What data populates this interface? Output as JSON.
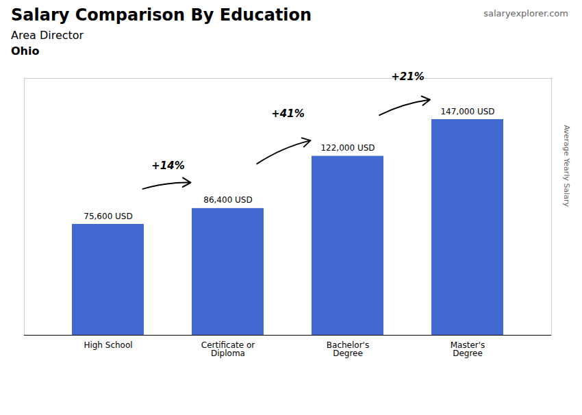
{
  "chart_data": {
    "type": "bar",
    "title": "Salary Comparison By Education",
    "subtitle": "Area Director",
    "ylabel": "Average Yearly Salary",
    "categories": [
      "High School",
      "Certificate or\nDiploma",
      "Bachelor's\nDegree",
      "Master's\nDegree"
    ],
    "values": [
      75600,
      86400,
      122000,
      147000
    ],
    "value_labels": [
      "75,600 USD",
      "86,400 USD",
      "122,000 USD",
      "147,000 USD"
    ],
    "data_labels": true,
    "ylim": [
      0,
      175000
    ],
    "tick_labels": "x",
    "annotations": [
      {
        "text": "Ohio"
      },
      {
        "text": "salaryexplorer.com"
      },
      {
        "text": "+14%",
        "from": "High School",
        "to": "Certificate or\nDiploma"
      },
      {
        "text": "+41%",
        "from": "Certificate or\nDiploma",
        "to": "Bachelor's\nDegree"
      },
      {
        "text": "+21%",
        "from": "Bachelor's\nDegree",
        "to": "Master's\nDegree"
      }
    ]
  }
}
